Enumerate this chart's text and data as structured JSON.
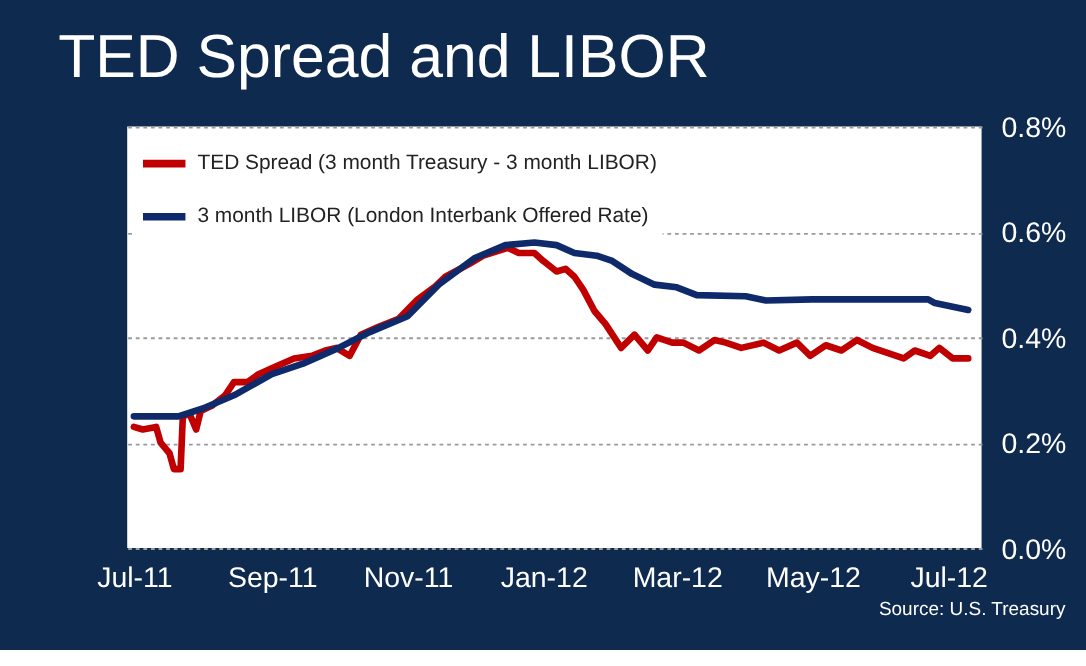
{
  "chart_data": {
    "type": "line",
    "title": "TED Spread and LIBOR",
    "xlim": [
      "2011-06-28",
      "2012-07-16"
    ],
    "xticks": [
      {
        "value": "2011-07-01",
        "label": "Jul-11"
      },
      {
        "value": "2011-09-01",
        "label": "Sep-11"
      },
      {
        "value": "2011-11-01",
        "label": "Nov-11"
      },
      {
        "value": "2012-01-01",
        "label": "Jan-12"
      },
      {
        "value": "2012-03-01",
        "label": "Mar-12"
      },
      {
        "value": "2012-05-01",
        "label": "May-12"
      },
      {
        "value": "2012-07-01",
        "label": "Jul-12"
      }
    ],
    "ylim": [
      0,
      0.8
    ],
    "yticks": [
      {
        "value": 0,
        "label": "0.0%"
      },
      {
        "value": 0.2,
        "label": "0.2%"
      },
      {
        "value": 0.4,
        "label": "0.4%"
      },
      {
        "value": 0.6,
        "label": "0.6%"
      },
      {
        "value": 0.8,
        "label": "0.8%"
      }
    ],
    "grid": "y",
    "legend": "top left",
    "line_style": "solid",
    "annotations": [
      "Source:  U.S. Treasury"
    ],
    "series": [
      {
        "name": "TED Spread (3 month Treasury - 3 month LIBOR)",
        "color": "#c00000",
        "x": [
          "2011-07-01",
          "2011-07-05",
          "2011-07-11",
          "2011-07-13",
          "2011-07-17",
          "2011-07-19",
          "2011-07-22",
          "2011-07-23",
          "2011-07-26",
          "2011-07-29",
          "2011-07-31",
          "2011-08-05",
          "2011-08-11",
          "2011-08-15",
          "2011-08-21",
          "2011-08-26",
          "2011-09-03",
          "2011-09-11",
          "2011-09-19",
          "2011-09-25",
          "2011-09-30",
          "2011-10-06",
          "2011-10-11",
          "2011-10-19",
          "2011-10-28",
          "2011-11-05",
          "2011-11-13",
          "2011-11-18",
          "2011-11-29",
          "2011-12-05",
          "2011-12-16",
          "2011-12-21",
          "2011-12-28",
          "2012-01-01",
          "2012-01-07",
          "2012-01-11",
          "2012-01-15",
          "2012-01-19",
          "2012-01-24",
          "2012-01-29",
          "2012-02-05",
          "2012-02-11",
          "2012-02-17",
          "2012-02-21",
          "2012-02-28",
          "2012-03-04",
          "2012-03-11",
          "2012-03-18",
          "2012-03-23",
          "2012-03-30",
          "2012-04-09",
          "2012-04-16",
          "2012-04-24",
          "2012-04-30",
          "2012-05-07",
          "2012-05-14",
          "2012-05-21",
          "2012-05-28",
          "2012-06-04",
          "2012-06-11",
          "2012-06-16",
          "2012-06-23",
          "2012-06-27",
          "2012-07-03",
          "2012-07-10"
        ],
        "values": [
          0.23,
          0.225,
          0.23,
          0.2,
          0.18,
          0.15,
          0.15,
          0.25,
          0.255,
          0.225,
          0.26,
          0.27,
          0.29,
          0.315,
          0.315,
          0.33,
          0.345,
          0.36,
          0.365,
          0.375,
          0.38,
          0.365,
          0.405,
          0.42,
          0.435,
          0.47,
          0.495,
          0.515,
          0.54,
          0.555,
          0.57,
          0.56,
          0.56,
          0.545,
          0.525,
          0.53,
          0.515,
          0.49,
          0.45,
          0.425,
          0.38,
          0.405,
          0.375,
          0.4,
          0.39,
          0.39,
          0.375,
          0.395,
          0.39,
          0.38,
          0.39,
          0.375,
          0.39,
          0.365,
          0.385,
          0.375,
          0.395,
          0.38,
          0.37,
          0.36,
          0.375,
          0.365,
          0.38,
          0.36,
          0.36
        ]
      },
      {
        "name": "3 month LIBOR (London Interbank Offered Rate)",
        "color": "#0f2a6b",
        "x": [
          "2011-07-01",
          "2011-07-21",
          "2011-08-01",
          "2011-08-15",
          "2011-09-01",
          "2011-09-15",
          "2011-10-01",
          "2011-10-15",
          "2011-11-01",
          "2011-11-15",
          "2011-12-01",
          "2011-12-15",
          "2011-12-28",
          "2012-01-07",
          "2012-01-15",
          "2012-01-25",
          "2012-02-01",
          "2012-02-10",
          "2012-02-20",
          "2012-03-01",
          "2012-03-10",
          "2012-04-01",
          "2012-04-10",
          "2012-05-01",
          "2012-06-01",
          "2012-06-22",
          "2012-06-25",
          "2012-07-10"
        ],
        "values": [
          0.25,
          0.25,
          0.265,
          0.29,
          0.33,
          0.35,
          0.38,
          0.41,
          0.44,
          0.5,
          0.55,
          0.575,
          0.58,
          0.575,
          0.56,
          0.555,
          0.545,
          0.52,
          0.5,
          0.495,
          0.48,
          0.478,
          0.47,
          0.472,
          0.472,
          0.472,
          0.465,
          0.452
        ]
      }
    ]
  }
}
